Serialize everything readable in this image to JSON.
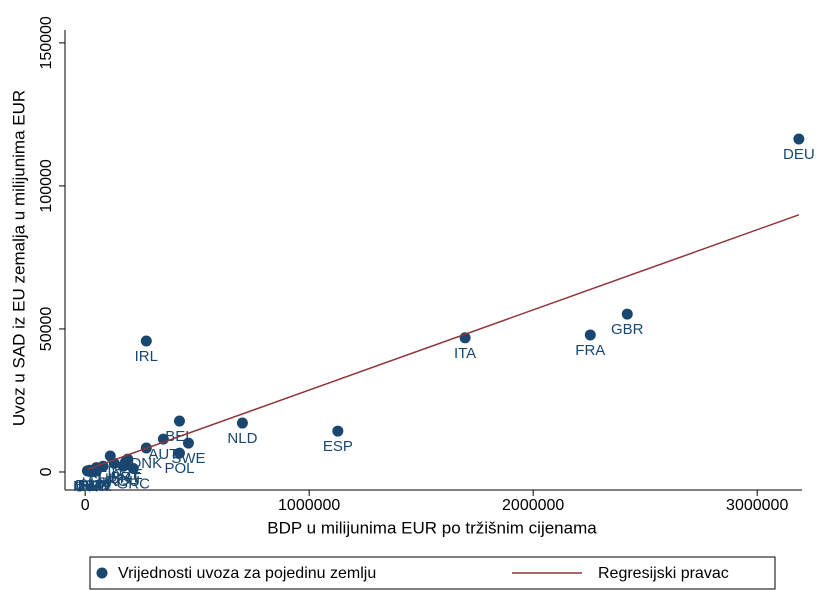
{
  "chart_data": {
    "type": "scatter",
    "xlabel": "BDP u milijunima EUR po tržišnim cijenama",
    "ylabel": "Uvoz u SAD iz EU zemalja u milijunima EUR",
    "xlim": [
      -90000,
      3200000
    ],
    "ylim": [
      -6300,
      154500
    ],
    "xticks": [
      0,
      1000000,
      2000000,
      3000000
    ],
    "yticks": [
      0,
      50000,
      100000,
      150000
    ],
    "series": [
      {
        "name": "Vrijednosti uvoza za pojedinu zemlju",
        "color": "#1a476f",
        "labels": [
          "DEU",
          "GBR",
          "FRA",
          "ITA",
          "IRL",
          "NLD",
          "ESP",
          "BEL",
          "AUT",
          "SWE",
          "POL",
          "DNK",
          "FIN",
          "CZE",
          "PRT",
          "ROU",
          "GRC",
          "HUN",
          "SVK",
          "LUX",
          "SVN",
          "LTU",
          "BGR",
          "HRV",
          "LVA",
          "EST",
          "CYP",
          "MLT"
        ],
        "x": [
          3186000,
          2420000,
          2255000,
          1696000,
          273000,
          702000,
          1128000,
          421000,
          349000,
          461000,
          421000,
          273000,
          112000,
          190000,
          180000,
          170000,
          215000,
          130000,
          80000,
          50000,
          40000,
          40000,
          45000,
          50000,
          25000,
          20000,
          18000,
          10000
        ],
        "values": [
          116400,
          55200,
          47900,
          46900,
          45800,
          17100,
          14300,
          17800,
          11500,
          10100,
          6600,
          8400,
          5600,
          4500,
          3500,
          2000,
          1200,
          3000,
          2000,
          1500,
          800,
          500,
          400,
          300,
          300,
          600,
          200,
          400
        ]
      },
      {
        "name": "Regresijski pravac",
        "color": "#90353b",
        "line": true,
        "x": [
          10000,
          3186000
        ],
        "values": [
          900,
          89900
        ]
      }
    ]
  }
}
